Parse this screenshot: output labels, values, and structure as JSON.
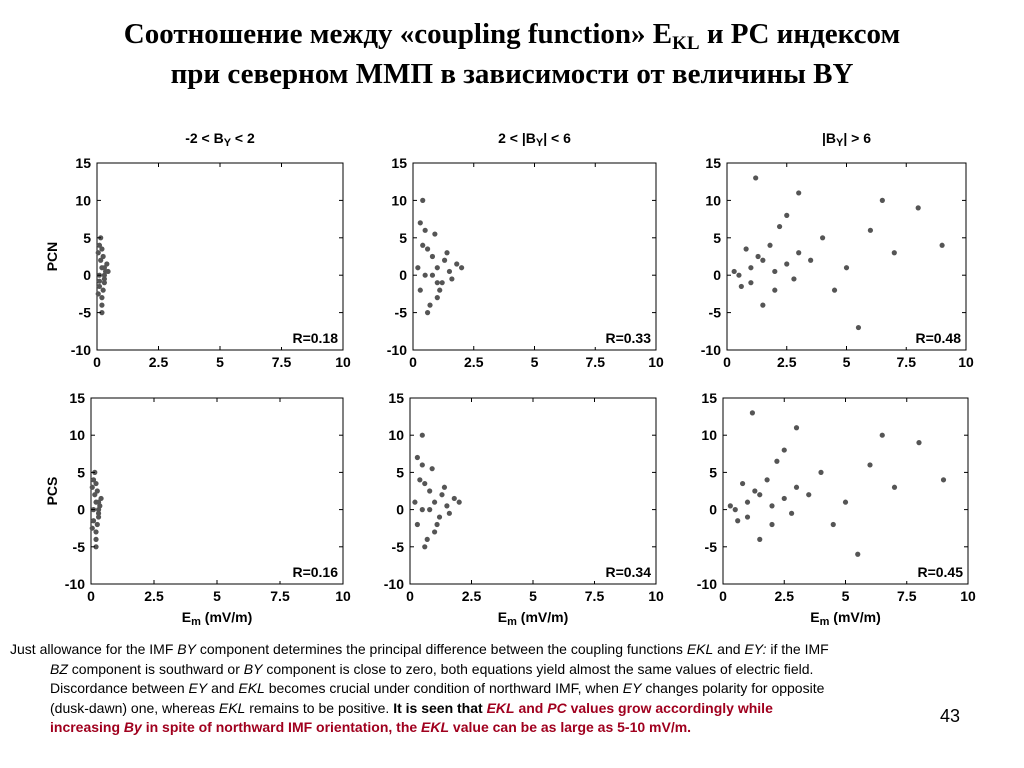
{
  "title": [
    "Соотношение между «coupling function» E",
    "KL",
    " и PC индексом"
  ],
  "subtitle": "при северном ММП в зависимости от величины BY",
  "chart_data": [
    {
      "type": "scatter",
      "title": [
        "-2  < B",
        "Y",
        " < 2"
      ],
      "ylabel": "PCN",
      "annotation": "R=0.18",
      "color": "#555555",
      "xlim": [
        0,
        10
      ],
      "ylim": [
        -10,
        15
      ],
      "xticks": [
        0,
        2.5,
        5,
        7.5,
        10
      ],
      "yticks": [
        -10,
        -5,
        0,
        5,
        10,
        15
      ],
      "x": [
        0.1,
        0.2,
        0.3,
        0.15,
        0.25,
        0.05,
        0.35,
        0.2,
        0.1,
        0.3,
        0.4,
        0.2,
        0.15,
        0.25,
        0.1,
        0.3,
        0.2,
        0.05,
        0.45,
        0.2,
        0.3,
        0.1
      ],
      "y": [
        0,
        1,
        -1,
        2,
        -2,
        3,
        0.5,
        -3,
        4,
        -0.5,
        1.5,
        -4,
        5,
        2.5,
        -1.5,
        0,
        3.5,
        -2.5,
        0.5,
        -5,
        1,
        -0.8
      ]
    },
    {
      "type": "scatter",
      "title": [
        "2 < |B",
        "Y",
        "| < 6"
      ],
      "annotation": "R=0.33",
      "color": "#555555",
      "xlim": [
        0,
        10
      ],
      "ylim": [
        -10,
        15
      ],
      "xticks": [
        0,
        2.5,
        5,
        7.5,
        10
      ],
      "yticks": [
        -10,
        -5,
        0,
        5,
        10,
        15
      ],
      "x": [
        0.5,
        1,
        1.5,
        0.3,
        0.8,
        1.2,
        1.8,
        0.6,
        1.0,
        0.4,
        1.4,
        0.7,
        0.9,
        1.6,
        0.2,
        1.1,
        0.5,
        1.3,
        0.8,
        2.0,
        0.6,
        0.3,
        0.4,
        1.0
      ],
      "y": [
        0,
        1,
        0.5,
        -2,
        2.5,
        -1,
        1.5,
        3.5,
        -3,
        4,
        3,
        -4,
        5.5,
        -0.5,
        1,
        -2,
        6,
        2,
        0,
        1,
        -5,
        7,
        10,
        -1
      ]
    },
    {
      "type": "scatter",
      "title": [
        "|B",
        "Y",
        "| > 6"
      ],
      "annotation": "R=0.48",
      "color": "#555555",
      "xlim": [
        0,
        10
      ],
      "ylim": [
        -10,
        15
      ],
      "xticks": [
        0,
        2.5,
        5,
        7.5,
        10
      ],
      "yticks": [
        -10,
        -5,
        0,
        5,
        10,
        15
      ],
      "x": [
        0.5,
        1,
        1.5,
        2,
        2.5,
        3,
        1,
        2,
        0.8,
        1.8,
        3.5,
        4,
        5,
        6,
        2.5,
        7,
        1.2,
        4.5,
        8,
        3,
        0.6,
        5.5,
        2.2,
        9,
        1.5,
        6.5,
        0.3,
        1.3,
        2.8
      ],
      "y": [
        0,
        1,
        2,
        0.5,
        1.5,
        3,
        -1,
        -2,
        3.5,
        4,
        2,
        5,
        1,
        6,
        8,
        3,
        13,
        -2,
        9,
        11,
        -1.5,
        -7,
        6.5,
        4,
        -4,
        10,
        0.5,
        2.5,
        -0.5
      ]
    },
    {
      "type": "scatter",
      "ylabel": "PCS",
      "xlabel": [
        "E",
        "m",
        "  (mV/m)"
      ],
      "annotation": "R=0.16",
      "color": "#555555",
      "xlim": [
        0,
        10
      ],
      "ylim": [
        -10,
        15
      ],
      "xticks": [
        0,
        2.5,
        5,
        7.5,
        10
      ],
      "yticks": [
        -10,
        -5,
        0,
        5,
        10,
        15
      ],
      "x": [
        0.1,
        0.2,
        0.3,
        0.15,
        0.25,
        0.05,
        0.35,
        0.2,
        0.1,
        0.3,
        0.4,
        0.2,
        0.15,
        0.25,
        0.1,
        0.3,
        0.2,
        0.05,
        0.2,
        0.3
      ],
      "y": [
        0,
        1,
        -1,
        2,
        -2,
        3,
        0.5,
        -3,
        4,
        -0.5,
        1.5,
        -4,
        5,
        2.5,
        -1.5,
        0,
        3.5,
        -2.5,
        -5,
        1
      ]
    },
    {
      "type": "scatter",
      "xlabel": [
        "E",
        "m",
        "  (mV/m)"
      ],
      "annotation": "R=0.34",
      "color": "#555555",
      "xlim": [
        0,
        10
      ],
      "ylim": [
        -10,
        15
      ],
      "xticks": [
        0,
        2.5,
        5,
        7.5,
        10
      ],
      "yticks": [
        -10,
        -5,
        0,
        5,
        10,
        15
      ],
      "x": [
        0.5,
        1,
        1.5,
        0.3,
        0.8,
        1.2,
        1.8,
        0.6,
        1.0,
        0.4,
        1.4,
        0.7,
        0.9,
        1.6,
        0.2,
        1.1,
        0.5,
        1.3,
        0.8,
        2.0,
        0.6,
        0.3,
        0.5
      ],
      "y": [
        0,
        1,
        0.5,
        -2,
        2.5,
        -1,
        1.5,
        3.5,
        -3,
        4,
        3,
        -4,
        5.5,
        -0.5,
        1,
        -2,
        6,
        2,
        0,
        1,
        -5,
        7,
        10
      ]
    },
    {
      "type": "scatter",
      "xlabel": [
        "E",
        "m",
        "  (mV/m)"
      ],
      "annotation": "R=0.45",
      "color": "#555555",
      "xlim": [
        0,
        10
      ],
      "ylim": [
        -10,
        15
      ],
      "xticks": [
        0,
        2.5,
        5,
        7.5,
        10
      ],
      "yticks": [
        -10,
        -5,
        0,
        5,
        10,
        15
      ],
      "x": [
        0.5,
        1,
        1.5,
        2,
        2.5,
        3,
        1,
        2,
        0.8,
        1.8,
        3.5,
        4,
        5,
        6,
        2.5,
        7,
        1.2,
        4.5,
        8,
        3,
        0.6,
        5.5,
        2.2,
        9,
        1.5,
        6.5,
        0.3,
        1.3,
        2.8
      ],
      "y": [
        0,
        1,
        2,
        0.5,
        1.5,
        3,
        -1,
        -2,
        3.5,
        4,
        2,
        5,
        1,
        6,
        8,
        3,
        13,
        -2,
        9,
        11,
        -1.5,
        -6,
        6.5,
        4,
        -4,
        10,
        0.5,
        2.5,
        -0.5
      ]
    }
  ],
  "caption": {
    "lines": [
      [
        {
          "text": "Just allowance for the IMF "
        },
        {
          "text": "BY",
          "italic": true
        },
        {
          "text": " component determines the principal difference between the coupling functions "
        },
        {
          "text": "EKL",
          "italic": true
        },
        {
          "text": " and "
        },
        {
          "text": "EY:",
          "italic": true
        },
        {
          "text": " if the IMF"
        }
      ],
      [
        {
          "text": "BZ",
          "italic": true
        },
        {
          "text": " component is southward or "
        },
        {
          "text": "BY",
          "italic": true
        },
        {
          "text": " component is close to zero, both equations yield almost the same values of electric field."
        }
      ],
      [
        {
          "text": "Discordance between "
        },
        {
          "text": "EY",
          "italic": true
        },
        {
          "text": " and "
        },
        {
          "text": "EKL",
          "italic": true
        },
        {
          "text": " becomes crucial under condition of northward IMF, when "
        },
        {
          "text": "EY",
          "italic": true
        },
        {
          "text": " changes polarity for opposite"
        }
      ],
      [
        {
          "text": "(dusk-dawn) one, whereas "
        },
        {
          "text": "EKL",
          "italic": true
        },
        {
          "text": " remains to be positive. "
        },
        {
          "text": "It is seen that ",
          "bold": true
        },
        {
          "text": "EKL",
          "bold": true,
          "italic": true,
          "color": "#a0001e"
        },
        {
          "text": " and ",
          "bold": true,
          "color": "#a0001e"
        },
        {
          "text": "PC",
          "bold": true,
          "italic": true,
          "color": "#a0001e"
        },
        {
          "text": " values grow accordingly while",
          "bold": true,
          "color": "#a0001e"
        }
      ],
      [
        {
          "text": "increasing ",
          "bold": true,
          "color": "#a0001e"
        },
        {
          "text": "By",
          "bold": true,
          "italic": true,
          "color": "#a0001e"
        },
        {
          "text": " in spite of northward IMF orientation, the ",
          "bold": true,
          "color": "#a0001e"
        },
        {
          "text": "EKL",
          "bold": true,
          "italic": true,
          "color": "#a0001e"
        },
        {
          "text": " value can be as large as 5-10 mV/m.",
          "bold": true,
          "color": "#a0001e"
        }
      ]
    ]
  },
  "page_number": "43"
}
